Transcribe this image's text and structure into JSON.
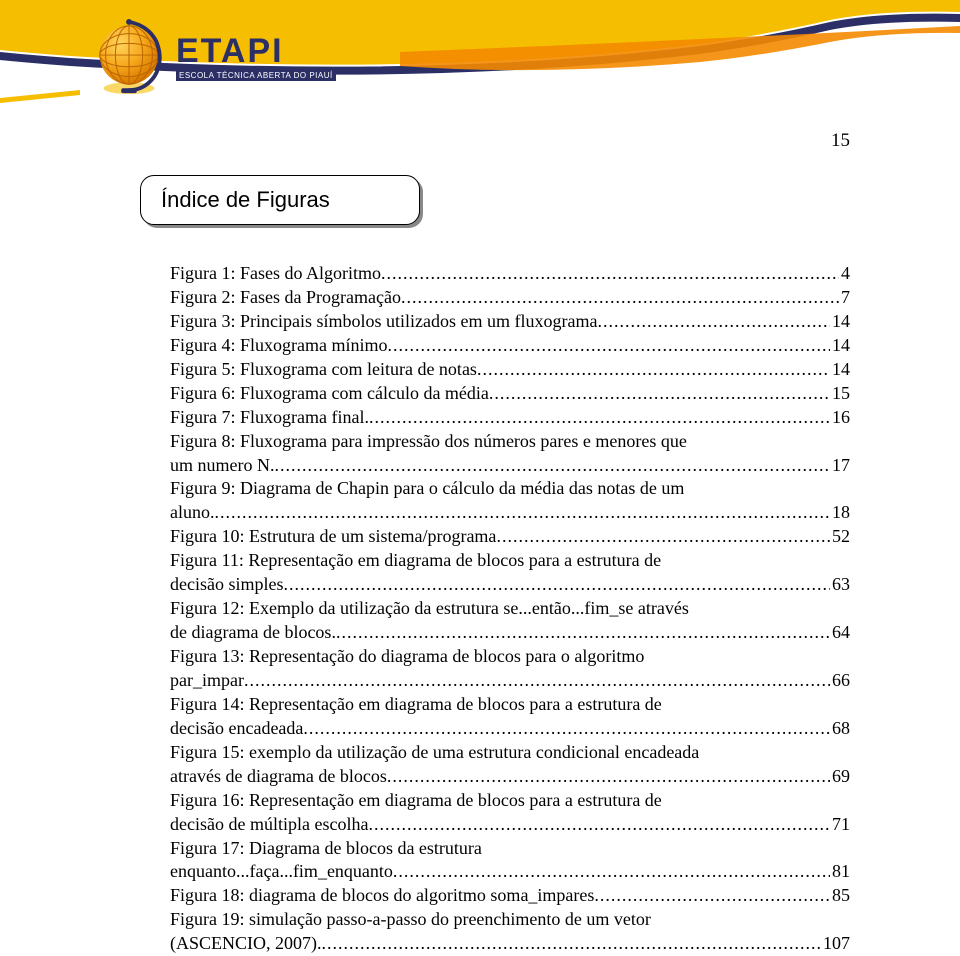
{
  "colors": {
    "curve_yellow": "#f6be00",
    "curve_blue": "#2b2f66",
    "curve_orange": "#f48a00",
    "globe_orange_dark": "#d87a00",
    "globe_orange_light": "#f7a81b",
    "white": "#ffffff",
    "text": "#000000",
    "shadow": "#888888"
  },
  "logo": {
    "main": "ETAPI",
    "sub": "ESCOLA TÉCNICA ABERTA DO PIAUÍ"
  },
  "page_number": "15",
  "heading": "Índice de Figuras",
  "toc": [
    {
      "label": "Figura 1: Fases do Algoritmo",
      "page": "4"
    },
    {
      "label": "Figura 2: Fases da Programação",
      "page": "7"
    },
    {
      "label": "Figura 3: Principais símbolos utilizados em um fluxograma",
      "page": "14"
    },
    {
      "label": "Figura 4: Fluxograma mínimo",
      "page": "14"
    },
    {
      "label": "Figura 5: Fluxograma com leitura de notas",
      "page": "14"
    },
    {
      "label": "Figura 6: Fluxograma com cálculo da média",
      "page": "15"
    },
    {
      "label": "Figura 7: Fluxograma final.",
      "page": "16"
    },
    {
      "label": "Figura 8: Fluxograma para impressão dos números pares  e menores que",
      "cont": "um numero N.",
      "page": "17"
    },
    {
      "label": "Figura 9: Diagrama de Chapin para o cálculo da média das notas de um",
      "cont": "aluno.",
      "page": "18"
    },
    {
      "label": "Figura 10: Estrutura de um sistema/programa",
      "page": "52"
    },
    {
      "label": "Figura 11: Representação em diagrama de blocos para a estrutura de",
      "cont": "decisão simples",
      "page": "63"
    },
    {
      "label": "Figura 12: Exemplo da utilização da estrutura se...então...fim_se através",
      "cont": "de diagrama de blocos.",
      "page": "64"
    },
    {
      "label": "Figura 13: Representação do diagrama de blocos para o algoritmo",
      "cont": "par_impar",
      "page": "66"
    },
    {
      "label": "Figura 14: Representação em diagrama de blocos para a estrutura de",
      "cont": "decisão encadeada",
      "page": "68"
    },
    {
      "label": "Figura 15: exemplo da utilização de uma estrutura condicional encadeada",
      "cont": "através de diagrama de blocos",
      "page": "69"
    },
    {
      "label": "Figura 16: Representação em diagrama de blocos para a estrutura de",
      "cont": "decisão de múltipla escolha",
      "page": "71"
    },
    {
      "label": "Figura 17: Diagrama de blocos da estrutura",
      "cont": "enquanto...faça...fim_enquanto",
      "page": "81"
    },
    {
      "label": "Figura 18: diagrama de blocos do algoritmo soma_impares",
      "page": "85"
    },
    {
      "label": "Figura 19: simulação passo-a-passo do preenchimento de um vetor",
      "cont": "(ASCENCIO, 2007).",
      "page": "107"
    }
  ]
}
